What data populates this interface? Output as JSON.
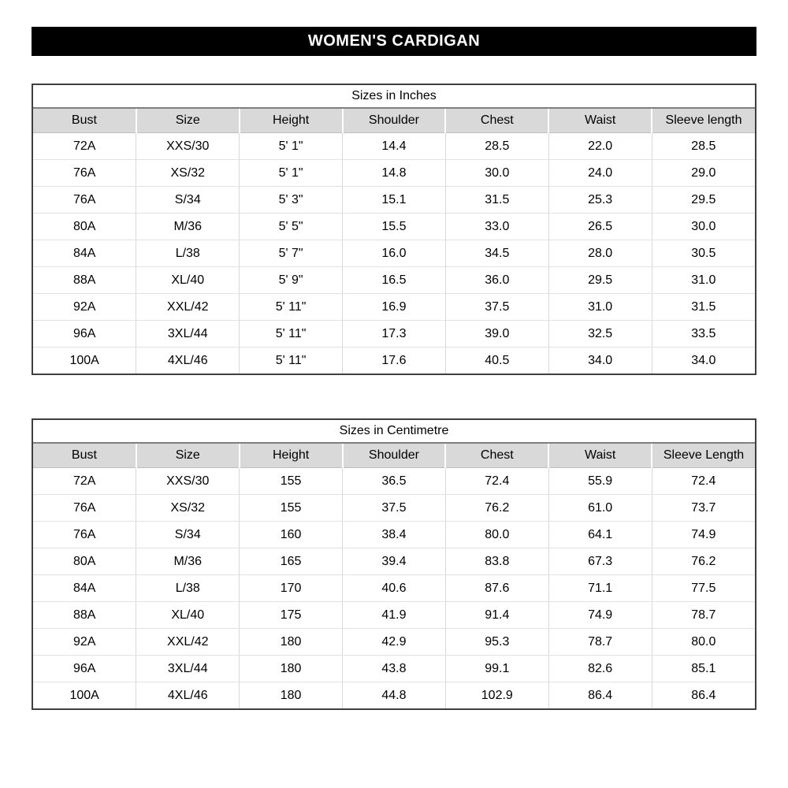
{
  "banner": {
    "title": "WOMEN'S CARDIGAN"
  },
  "colors": {
    "banner_bg": "#000000",
    "banner_text": "#ffffff",
    "header_row_bg": "#d9d9d9",
    "table_border": "#3f3f3f",
    "title_divider": "#7f7f7f",
    "grid_line": "#d9d9d9"
  },
  "tables": [
    {
      "title": "Sizes in Inches",
      "columns": [
        "Bust",
        "Size",
        "Height",
        "Shoulder",
        "Chest",
        "Waist",
        "Sleeve length"
      ],
      "rows": [
        [
          "72A",
          "XXS/30",
          "5' 1\"",
          "14.4",
          "28.5",
          "22.0",
          "28.5"
        ],
        [
          "76A",
          "XS/32",
          "5' 1\"",
          "14.8",
          "30.0",
          "24.0",
          "29.0"
        ],
        [
          "76A",
          "S/34",
          "5' 3\"",
          "15.1",
          "31.5",
          "25.3",
          "29.5"
        ],
        [
          "80A",
          "M/36",
          "5' 5\"",
          "15.5",
          "33.0",
          "26.5",
          "30.0"
        ],
        [
          "84A",
          "L/38",
          "5' 7\"",
          "16.0",
          "34.5",
          "28.0",
          "30.5"
        ],
        [
          "88A",
          "XL/40",
          "5' 9\"",
          "16.5",
          "36.0",
          "29.5",
          "31.0"
        ],
        [
          "92A",
          "XXL/42",
          "5' 11\"",
          "16.9",
          "37.5",
          "31.0",
          "31.5"
        ],
        [
          "96A",
          "3XL/44",
          "5' 11\"",
          "17.3",
          "39.0",
          "32.5",
          "33.5"
        ],
        [
          "100A",
          "4XL/46",
          "5' 11\"",
          "17.6",
          "40.5",
          "34.0",
          "34.0"
        ]
      ]
    },
    {
      "title": "Sizes in Centimetre",
      "columns": [
        "Bust",
        "Size",
        "Height",
        "Shoulder",
        "Chest",
        "Waist",
        "Sleeve Length"
      ],
      "rows": [
        [
          "72A",
          "XXS/30",
          "155",
          "36.5",
          "72.4",
          "55.9",
          "72.4"
        ],
        [
          "76A",
          "XS/32",
          "155",
          "37.5",
          "76.2",
          "61.0",
          "73.7"
        ],
        [
          "76A",
          "S/34",
          "160",
          "38.4",
          "80.0",
          "64.1",
          "74.9"
        ],
        [
          "80A",
          "M/36",
          "165",
          "39.4",
          "83.8",
          "67.3",
          "76.2"
        ],
        [
          "84A",
          "L/38",
          "170",
          "40.6",
          "87.6",
          "71.1",
          "77.5"
        ],
        [
          "88A",
          "XL/40",
          "175",
          "41.9",
          "91.4",
          "74.9",
          "78.7"
        ],
        [
          "92A",
          "XXL/42",
          "180",
          "42.9",
          "95.3",
          "78.7",
          "80.0"
        ],
        [
          "96A",
          "3XL/44",
          "180",
          "43.8",
          "99.1",
          "82.6",
          "85.1"
        ],
        [
          "100A",
          "4XL/46",
          "180",
          "44.8",
          "102.9",
          "86.4",
          "86.4"
        ]
      ]
    }
  ]
}
